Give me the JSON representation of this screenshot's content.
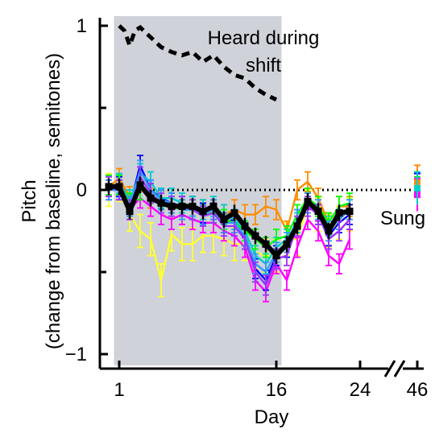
{
  "chart_data": {
    "type": "line",
    "title": "",
    "xlabel": "Day",
    "ylabel": "Pitch",
    "ylabel_sub": "(change from baseline, semitones)",
    "xlim": [
      -1,
      48
    ],
    "ylim": [
      -1.05,
      1.05
    ],
    "x_ticks": [
      {
        "value": 1,
        "label": "1"
      },
      {
        "value": 16,
        "label": "16"
      },
      {
        "value": 24,
        "label": "24"
      },
      {
        "value": 46,
        "label": "46"
      }
    ],
    "y_ticks": [
      {
        "value": 1,
        "label": "1"
      },
      {
        "value": 0,
        "label": "0"
      },
      {
        "value": -1,
        "label": "−1"
      }
    ],
    "axis_break": {
      "between": [
        24,
        46
      ]
    },
    "shaded_region": {
      "x": [
        0.5,
        16.5
      ],
      "color": "#cfd2d8"
    },
    "reference_line": {
      "y": 0,
      "style": "dotted"
    },
    "annotations": [
      {
        "text": "Heard during",
        "series": "heard"
      },
      {
        "text": "shift",
        "series": "heard"
      },
      {
        "text": "Sung",
        "series": "mean"
      }
    ],
    "heard": {
      "x": [
        1,
        1.5,
        2,
        2.5,
        3,
        3.5,
        4,
        5,
        6,
        7,
        8,
        9,
        10,
        11,
        12,
        13,
        14,
        15,
        16
      ],
      "values": [
        1.0,
        0.97,
        0.88,
        0.97,
        0.99,
        0.96,
        0.93,
        0.87,
        0.84,
        0.82,
        0.84,
        0.78,
        0.82,
        0.75,
        0.7,
        0.68,
        0.62,
        0.58,
        0.55
      ]
    },
    "mean": {
      "x": [
        0,
        1,
        2,
        3,
        4,
        5,
        6,
        7,
        8,
        9,
        10,
        11,
        12,
        13,
        14,
        15,
        16,
        17,
        18,
        19,
        20,
        21,
        22,
        23
      ],
      "values": [
        0.02,
        0.02,
        -0.13,
        0.03,
        -0.05,
        -0.08,
        -0.1,
        -0.1,
        -0.1,
        -0.13,
        -0.1,
        -0.18,
        -0.14,
        -0.22,
        -0.28,
        -0.33,
        -0.4,
        -0.33,
        -0.22,
        -0.07,
        -0.13,
        -0.25,
        -0.14,
        -0.13
      ],
      "err": 0.05,
      "color": "#000000"
    },
    "series": [
      {
        "color": "#ffff33",
        "x": [
          0,
          1,
          2,
          3,
          4,
          5,
          6,
          7,
          8,
          9,
          10,
          11,
          12,
          13,
          14,
          15,
          16,
          17,
          18,
          19,
          20,
          21,
          22,
          23
        ],
        "values": [
          0.0,
          0.03,
          -0.15,
          -0.25,
          -0.3,
          -0.55,
          -0.27,
          -0.33,
          -0.33,
          -0.28,
          -0.28,
          -0.3,
          -0.33,
          -0.33,
          -0.38,
          -0.4,
          -0.4,
          -0.3,
          -0.3,
          -0.1,
          -0.15,
          -0.25,
          -0.2,
          -0.15
        ],
        "err": 0.1
      },
      {
        "color": "#ff8c00",
        "x": [
          0,
          1,
          2,
          3,
          4,
          5,
          6,
          7,
          8,
          9,
          10,
          11,
          12,
          13,
          14,
          15,
          16,
          17,
          18,
          19,
          20,
          21,
          22,
          23
        ],
        "values": [
          0.02,
          0.07,
          -0.04,
          0.05,
          -0.05,
          -0.06,
          -0.08,
          -0.1,
          -0.1,
          -0.12,
          -0.12,
          -0.15,
          -0.12,
          -0.15,
          -0.15,
          -0.1,
          -0.12,
          -0.25,
          0.0,
          0.05,
          -0.05,
          -0.2,
          -0.1,
          -0.1
        ],
        "err": 0.06
      },
      {
        "color": "#ff00ff",
        "x": [
          0,
          1,
          2,
          3,
          4,
          5,
          6,
          7,
          8,
          9,
          10,
          11,
          12,
          13,
          14,
          15,
          16,
          17,
          18,
          19,
          20,
          21,
          22,
          23
        ],
        "values": [
          0.0,
          0.0,
          -0.12,
          -0.05,
          -0.1,
          -0.15,
          -0.18,
          -0.15,
          -0.18,
          -0.2,
          -0.2,
          -0.25,
          -0.28,
          -0.35,
          -0.55,
          -0.62,
          -0.45,
          -0.55,
          -0.35,
          -0.18,
          -0.25,
          -0.4,
          -0.45,
          -0.3
        ],
        "err": 0.06
      },
      {
        "color": "#0000ff",
        "x": [
          0,
          1,
          2,
          3,
          4,
          5,
          6,
          7,
          8,
          9,
          10,
          11,
          12,
          13,
          14,
          15,
          16,
          17,
          18,
          19,
          20,
          21,
          22,
          23
        ],
        "values": [
          0.02,
          0.02,
          -0.1,
          0.15,
          0.0,
          -0.05,
          -0.08,
          -0.1,
          -0.1,
          -0.14,
          -0.12,
          -0.2,
          -0.18,
          -0.3,
          -0.48,
          -0.55,
          -0.4,
          -0.35,
          -0.18,
          -0.08,
          -0.15,
          -0.28,
          -0.2,
          -0.15
        ],
        "err": 0.06
      },
      {
        "color": "#00cccc",
        "x": [
          0,
          1,
          2,
          3,
          4,
          5,
          6,
          7,
          8,
          9,
          10,
          11,
          12,
          13,
          14,
          15,
          16,
          17,
          18,
          19,
          20,
          21,
          22,
          23
        ],
        "values": [
          0.0,
          0.04,
          -0.06,
          0.1,
          0.05,
          -0.05,
          -0.05,
          -0.08,
          -0.1,
          -0.12,
          -0.1,
          -0.15,
          -0.18,
          -0.25,
          -0.4,
          -0.45,
          -0.35,
          -0.3,
          -0.2,
          -0.1,
          -0.12,
          -0.22,
          -0.18,
          -0.12
        ],
        "err": 0.06
      },
      {
        "color": "#00ff00",
        "x": [
          0,
          1,
          2,
          3,
          4,
          5,
          6,
          7,
          8,
          9,
          10,
          11,
          12,
          13,
          14,
          15,
          16,
          17,
          18,
          19,
          20,
          21,
          22,
          23
        ],
        "values": [
          0.03,
          0.03,
          -0.08,
          0.0,
          -0.02,
          -0.08,
          -0.1,
          -0.12,
          -0.12,
          -0.15,
          -0.14,
          -0.18,
          -0.2,
          -0.25,
          -0.3,
          -0.35,
          -0.3,
          -0.28,
          -0.15,
          -0.05,
          -0.1,
          -0.2,
          -0.1,
          -0.08
        ],
        "err": 0.06
      },
      {
        "color": "#3399ff",
        "x": [
          0,
          1,
          2,
          3,
          4,
          5,
          6,
          7,
          8,
          9,
          10,
          11,
          12,
          13,
          14,
          15,
          16,
          17,
          18,
          19,
          20,
          21,
          22,
          23
        ],
        "values": [
          0.0,
          0.0,
          -0.1,
          0.12,
          0.0,
          -0.06,
          -0.08,
          -0.12,
          -0.12,
          -0.15,
          -0.12,
          -0.2,
          -0.2,
          -0.28,
          -0.45,
          -0.5,
          -0.38,
          -0.32,
          -0.18,
          -0.08,
          -0.12,
          -0.25,
          -0.18,
          -0.12
        ],
        "err": 0.06
      },
      {
        "color": "#9933ff",
        "x": [
          0,
          1,
          2,
          3,
          4,
          5,
          6,
          7,
          8,
          9,
          10,
          11,
          12,
          13,
          14,
          15,
          16,
          17,
          18,
          19,
          20,
          21,
          22,
          23
        ],
        "values": [
          0.02,
          0.0,
          -0.12,
          0.08,
          -0.02,
          -0.08,
          -0.1,
          -0.1,
          -0.12,
          -0.16,
          -0.14,
          -0.22,
          -0.22,
          -0.3,
          -0.5,
          -0.58,
          -0.42,
          -0.4,
          -0.22,
          -0.1,
          -0.15,
          -0.3,
          -0.25,
          -0.18
        ],
        "err": 0.06
      }
    ],
    "day46_points": [
      {
        "color": "#ff8c00",
        "value": 0.05
      },
      {
        "color": "#00ff00",
        "value": -0.02
      },
      {
        "color": "#0000ff",
        "value": 0.0
      },
      {
        "color": "#ff00ff",
        "value": -0.03
      },
      {
        "color": "#00cccc",
        "value": 0.01
      }
    ]
  }
}
